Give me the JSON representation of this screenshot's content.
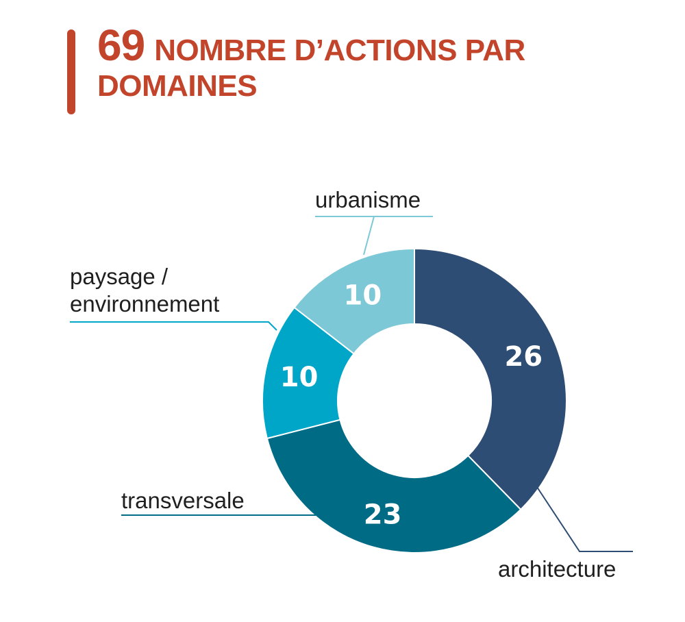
{
  "title": {
    "number": "69",
    "text": "NOMBRE D’ACTIONS PAR DOMAINES"
  },
  "colors": {
    "accent": "#c2452b",
    "background": "#ffffff"
  },
  "chart_data": {
    "type": "pie",
    "donut": true,
    "title": "69 NOMBRE D’ACTIONS PAR DOMAINES",
    "total": 69,
    "categories": [
      "architecture",
      "transversale",
      "paysage / environnement",
      "urbanisme"
    ],
    "label_lines": [
      [
        "architecture"
      ],
      [
        "transversale"
      ],
      [
        "paysage /",
        "environnement"
      ],
      [
        "urbanisme"
      ]
    ],
    "values": [
      26,
      23,
      10,
      10
    ],
    "value_labels": [
      "26",
      "23",
      "10",
      "10"
    ],
    "colors": [
      "#2e4d74",
      "#006b85",
      "#00a6c8",
      "#7cc8d6"
    ],
    "start": "top",
    "direction": "clockwise",
    "legend": "none"
  }
}
